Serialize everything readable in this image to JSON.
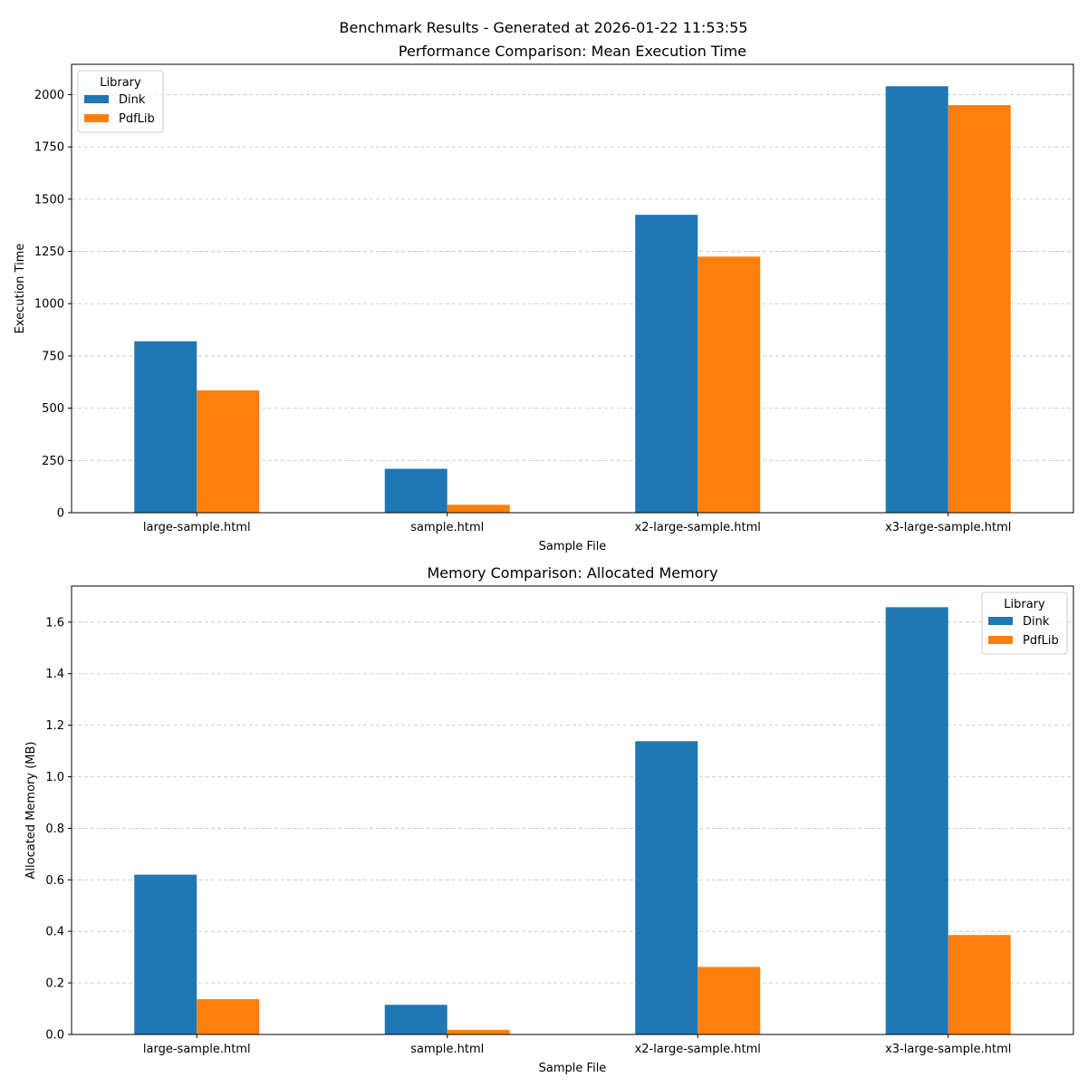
{
  "suptitle": "Benchmark Results - Generated at 2026-01-22 11:53:55",
  "colors": {
    "Dink": "#1f77b4",
    "PdfLib": "#ff7f0e",
    "grid": "#b0b0b0"
  },
  "chart_data": [
    {
      "type": "bar",
      "title": "Performance Comparison: Mean Execution Time",
      "xlabel": "Sample File",
      "ylabel": "Execution Time",
      "categories": [
        "large-sample.html",
        "sample.html",
        "x2-large-sample.html",
        "x3-large-sample.html"
      ],
      "series": [
        {
          "name": "Dink",
          "values": [
            820,
            210,
            1425,
            2040
          ]
        },
        {
          "name": "PdfLib",
          "values": [
            585,
            38,
            1225,
            1950
          ]
        }
      ],
      "ylim": [
        0,
        2145
      ],
      "yticks": [
        0,
        250,
        500,
        750,
        1000,
        1250,
        1500,
        1750,
        2000
      ],
      "ytick_labels": [
        "0",
        "250",
        "500",
        "750",
        "1000",
        "1250",
        "1500",
        "1750",
        "2000"
      ],
      "grid": true,
      "legend": {
        "title": "Library",
        "position": "top-left"
      }
    },
    {
      "type": "bar",
      "title": "Memory Comparison: Allocated Memory",
      "xlabel": "Sample File",
      "ylabel": "Allocated Memory (MB)",
      "categories": [
        "large-sample.html",
        "sample.html",
        "x2-large-sample.html",
        "x3-large-sample.html"
      ],
      "series": [
        {
          "name": "Dink",
          "values": [
            0.62,
            0.115,
            1.138,
            1.658
          ]
        },
        {
          "name": "PdfLib",
          "values": [
            0.137,
            0.018,
            0.262,
            0.386
          ]
        }
      ],
      "ylim": [
        0,
        1.74
      ],
      "yticks": [
        0,
        0.2,
        0.4,
        0.6,
        0.8,
        1.0,
        1.2,
        1.4,
        1.6
      ],
      "ytick_labels": [
        "0.0",
        "0.2",
        "0.4",
        "0.6",
        "0.8",
        "1.0",
        "1.2",
        "1.4",
        "1.6"
      ],
      "grid": true,
      "legend": {
        "title": "Library",
        "position": "top-right"
      }
    }
  ]
}
